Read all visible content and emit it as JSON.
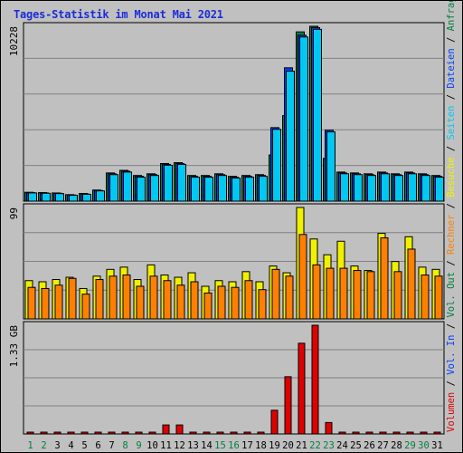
{
  "title": "Tages-Statistik im Monat Mai 2021",
  "colors": {
    "background": "#c0c0c0",
    "title": "#1c2cd8",
    "anfragen": "#008040",
    "dateien": "#0040ff",
    "seiten": "#00c8f0",
    "besuche": "#f0f000",
    "rechner": "#ff8000",
    "vol_out": "#008040",
    "vol_in": "#0040ff",
    "volumen": "#e00000",
    "weekend_day_label": "#008040",
    "weekday_label": "#000000"
  },
  "chart_data": [
    {
      "type": "bar",
      "panel": "top",
      "ymax_label": "10228",
      "ylim": [
        0,
        10228
      ],
      "categories": [
        "1",
        "2",
        "3",
        "4",
        "5",
        "6",
        "7",
        "8",
        "9",
        "10",
        "11",
        "12",
        "13",
        "14",
        "15",
        "16",
        "17",
        "18",
        "19",
        "20",
        "21",
        "22",
        "23",
        "24",
        "25",
        "26",
        "27",
        "28",
        "29",
        "30",
        "31"
      ],
      "series": [
        {
          "name": "Anfragen",
          "values": [
            520,
            500,
            480,
            380,
            450,
            650,
            1650,
            1800,
            1500,
            1600,
            2200,
            2250,
            1500,
            1500,
            1600,
            1450,
            1500,
            1550,
            2700,
            5000,
            9900,
            10228,
            2500,
            1700,
            1650,
            1600,
            1700,
            1600,
            1700,
            1600,
            1500
          ]
        },
        {
          "name": "Dateien",
          "values": [
            500,
            480,
            460,
            360,
            420,
            620,
            1600,
            1750,
            1450,
            1550,
            2150,
            2200,
            1450,
            1450,
            1550,
            1400,
            1450,
            1500,
            4300,
            7800,
            9700,
            10150,
            4150,
            1650,
            1600,
            1550,
            1650,
            1550,
            1650,
            1550,
            1450
          ]
        },
        {
          "name": "Seiten",
          "values": [
            480,
            460,
            440,
            340,
            400,
            600,
            1550,
            1700,
            1400,
            1500,
            2100,
            2150,
            1400,
            1400,
            1500,
            1350,
            1400,
            1450,
            4200,
            7600,
            9600,
            10050,
            4050,
            1600,
            1550,
            1500,
            1600,
            1500,
            1600,
            1500,
            1400
          ]
        }
      ],
      "legend": [
        "Anfragen",
        "Dateien",
        "Seiten"
      ]
    },
    {
      "type": "bar",
      "panel": "middle",
      "ymax_label": "99",
      "ylim": [
        0,
        99
      ],
      "categories": [
        "1",
        "2",
        "3",
        "4",
        "5",
        "6",
        "7",
        "8",
        "9",
        "10",
        "11",
        "12",
        "13",
        "14",
        "15",
        "16",
        "17",
        "18",
        "19",
        "20",
        "21",
        "22",
        "23",
        "24",
        "25",
        "26",
        "27",
        "28",
        "29",
        "30",
        "31"
      ],
      "series": [
        {
          "name": "Besuche",
          "values": [
            34,
            33,
            35,
            37,
            27,
            38,
            44,
            46,
            35,
            48,
            39,
            37,
            41,
            29,
            34,
            33,
            42,
            33,
            47,
            41,
            99,
            71,
            57,
            69,
            47,
            43,
            76,
            51,
            73,
            46,
            44
          ]
        },
        {
          "name": "Rechner",
          "values": [
            28,
            27,
            30,
            36,
            22,
            35,
            38,
            39,
            29,
            38,
            34,
            30,
            33,
            23,
            29,
            28,
            34,
            26,
            44,
            38,
            75,
            48,
            45,
            45,
            43,
            42,
            72,
            42,
            62,
            39,
            38
          ]
        }
      ],
      "legend": [
        "Besuche",
        "Rechner"
      ]
    },
    {
      "type": "bar",
      "panel": "bottom",
      "ymax_label": "1.33 GB",
      "unit": "GB",
      "ylim": [
        0,
        1.33
      ],
      "categories": [
        "1",
        "2",
        "3",
        "4",
        "5",
        "6",
        "7",
        "8",
        "9",
        "10",
        "11",
        "12",
        "13",
        "14",
        "15",
        "16",
        "17",
        "18",
        "19",
        "20",
        "21",
        "22",
        "23",
        "24",
        "25",
        "26",
        "27",
        "28",
        "29",
        "30",
        "31"
      ],
      "series": [
        {
          "name": "Volumen",
          "values": [
            0.01,
            0.01,
            0.01,
            0.01,
            0.01,
            0.01,
            0.01,
            0.01,
            0.01,
            0.01,
            0.11,
            0.11,
            0.01,
            0.01,
            0.01,
            0.01,
            0.01,
            0.01,
            0.29,
            0.7,
            1.11,
            1.33,
            0.14,
            0.01,
            0.01,
            0.01,
            0.01,
            0.01,
            0.01,
            0.01,
            0.01
          ]
        }
      ],
      "legend": [
        "Volumen",
        "Vol. In",
        "Vol. Out"
      ]
    }
  ],
  "x_labels": [
    {
      "text": "1",
      "weekend": true
    },
    {
      "text": "2",
      "weekend": true
    },
    {
      "text": "3",
      "weekend": false
    },
    {
      "text": "4",
      "weekend": false
    },
    {
      "text": "5",
      "weekend": false
    },
    {
      "text": "6",
      "weekend": false
    },
    {
      "text": "7",
      "weekend": false
    },
    {
      "text": "8",
      "weekend": true
    },
    {
      "text": "9",
      "weekend": true
    },
    {
      "text": "10",
      "weekend": false
    },
    {
      "text": "11",
      "weekend": false
    },
    {
      "text": "12",
      "weekend": false
    },
    {
      "text": "13",
      "weekend": false
    },
    {
      "text": "14",
      "weekend": false
    },
    {
      "text": "15",
      "weekend": true
    },
    {
      "text": "16",
      "weekend": true
    },
    {
      "text": "17",
      "weekend": false
    },
    {
      "text": "18",
      "weekend": false
    },
    {
      "text": "19",
      "weekend": false
    },
    {
      "text": "20",
      "weekend": false
    },
    {
      "text": "21",
      "weekend": false
    },
    {
      "text": "22",
      "weekend": true
    },
    {
      "text": "23",
      "weekend": true
    },
    {
      "text": "24",
      "weekend": false
    },
    {
      "text": "25",
      "weekend": false
    },
    {
      "text": "26",
      "weekend": false
    },
    {
      "text": "27",
      "weekend": false
    },
    {
      "text": "28",
      "weekend": false
    },
    {
      "text": "29",
      "weekend": true
    },
    {
      "text": "30",
      "weekend": true
    },
    {
      "text": "31",
      "weekend": false
    }
  ],
  "right_legend": [
    {
      "text": "Volumen",
      "color": "#e00000"
    },
    {
      "text": " / ",
      "color": "#000000"
    },
    {
      "text": "Vol. In",
      "color": "#0040ff"
    },
    {
      "text": " / ",
      "color": "#000000"
    },
    {
      "text": "Vol. Out",
      "color": "#008040"
    },
    {
      "text": " / ",
      "color": "#000000"
    },
    {
      "text": "Rechner",
      "color": "#ff8000"
    },
    {
      "text": " / ",
      "color": "#000000"
    },
    {
      "text": "Besuche",
      "color": "#f0f000"
    },
    {
      "text": " / ",
      "color": "#000000"
    },
    {
      "text": "Seiten",
      "color": "#00c8f0"
    },
    {
      "text": " / ",
      "color": "#000000"
    },
    {
      "text": "Dateien",
      "color": "#0040ff"
    },
    {
      "text": " / ",
      "color": "#000000"
    },
    {
      "text": "Anfragen",
      "color": "#008040"
    }
  ]
}
